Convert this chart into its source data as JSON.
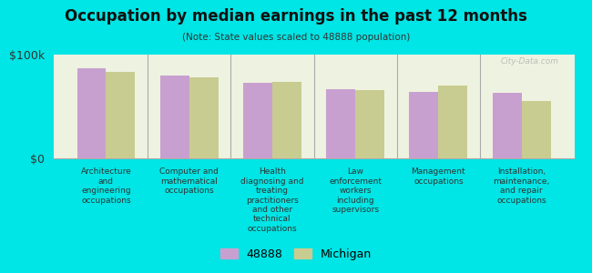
{
  "title": "Occupation by median earnings in the past 12 months",
  "subtitle": "(Note: State values scaled to 48888 population)",
  "background_color": "#00e5e5",
  "plot_bg_color": "#eef2e0",
  "categories": [
    "Architecture\nand\nengineering\noccupations",
    "Computer and\nmathematical\noccupations",
    "Health\ndiagnosing and\ntreating\npractitioners\nand other\ntechnical\noccupations",
    "Law\nenforcement\nworkers\nincluding\nsupervisors",
    "Management\noccupations",
    "Installation,\nmaintenance,\nand repair\noccupations"
  ],
  "values_48888": [
    87000,
    80000,
    73000,
    67000,
    64000,
    63000
  ],
  "values_michigan": [
    83000,
    78000,
    74000,
    66000,
    70000,
    55000
  ],
  "bar_color_48888": "#c8a0d0",
  "bar_color_michigan": "#c8cc90",
  "legend_48888": "48888",
  "legend_michigan": "Michigan",
  "ymax": 100000,
  "yticks": [
    0,
    100000
  ],
  "ytick_labels": [
    "$0",
    "$100k"
  ],
  "watermark": "City-Data.com",
  "title_fontsize": 12,
  "subtitle_fontsize": 7.5,
  "xlabel_fontsize": 6.5,
  "ylabel_fontsize": 9,
  "legend_fontsize": 9
}
